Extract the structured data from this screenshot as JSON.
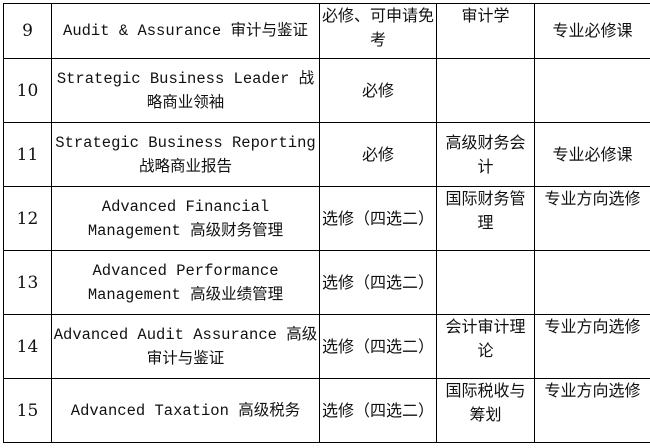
{
  "rows": [
    {
      "no": "9",
      "course": "Audit & Assurance 审计与鉴证",
      "requirement": "必修、可申请免考",
      "equivalent": "审计学",
      "category": "专业必修课"
    },
    {
      "no": "10",
      "course": "Strategic Business Leader 战略商业领袖",
      "requirement": "必修",
      "equivalent": "",
      "category": ""
    },
    {
      "no": "11",
      "course": "Strategic Business Reporting 战略商业报告",
      "requirement": "必修",
      "equivalent": "高级财务会计",
      "category": "专业必修课"
    },
    {
      "no": "12",
      "course": "Advanced Financial Management 高级财务管理",
      "requirement": "选修（四选二）",
      "equivalent": "国际财务管理",
      "category": "专业方向选修"
    },
    {
      "no": "13",
      "course": "Advanced Performance Management 高级业绩管理",
      "requirement": "选修（四选二）",
      "equivalent": "",
      "category": ""
    },
    {
      "no": "14",
      "course": "Advanced Audit Assurance 高级审计与鉴证",
      "requirement": "选修（四选二）",
      "equivalent": "会计审计理论",
      "category": "专业方向选修"
    },
    {
      "no": "15",
      "course": "Advanced Taxation 高级税务",
      "requirement": "选修（四选二）",
      "equivalent": "国际税收与筹划",
      "category": "专业方向选修"
    }
  ]
}
